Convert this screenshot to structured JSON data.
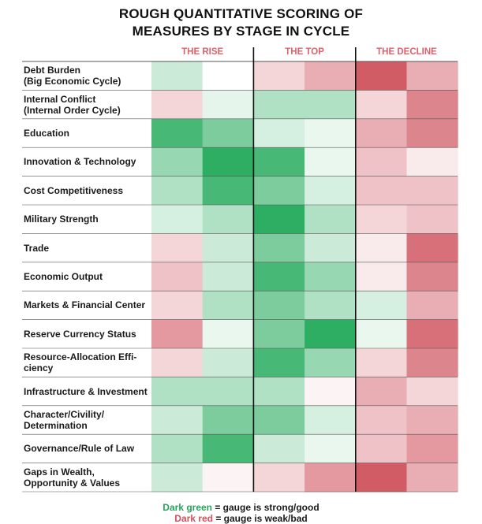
{
  "title_line1": "ROUGH QUANTITATIVE SCORING OF",
  "title_line2": "MEASURES BY STAGE IN CYCLE",
  "chart_data": {
    "type": "heatmap",
    "stages": [
      "THE RISE",
      "THE TOP",
      "THE DECLINE"
    ],
    "rows": [
      {
        "label": [
          "Debt Burden",
          "(Big Economic Cycle)"
        ],
        "values": [
          1,
          0,
          -1,
          -2,
          -4,
          -2
        ]
      },
      {
        "label": [
          "Internal Conflict",
          "(Internal Order Cycle)"
        ],
        "values": [
          -1,
          0.5,
          1.5,
          1.5,
          -1,
          -3
        ]
      },
      {
        "label": [
          "Education"
        ],
        "values": [
          3.5,
          2.5,
          0.8,
          0.4,
          -2,
          -3
        ]
      },
      {
        "label": [
          "Innovation & Technology"
        ],
        "values": [
          2,
          4,
          3.5,
          0.4,
          -1.5,
          -0.5
        ]
      },
      {
        "label": [
          "Cost Competitiveness"
        ],
        "values": [
          1.5,
          3.5,
          2.5,
          0.8,
          -1.5,
          -1.5
        ]
      },
      {
        "label": [
          "Military Strength"
        ],
        "values": [
          0.8,
          1.5,
          4,
          1.5,
          -1,
          -1.5
        ]
      },
      {
        "label": [
          "Trade"
        ],
        "values": [
          -1,
          1,
          2.5,
          1,
          -0.5,
          -3.5
        ]
      },
      {
        "label": [
          "Economic Output"
        ],
        "values": [
          -1.5,
          1,
          3.5,
          2,
          -0.5,
          -3
        ]
      },
      {
        "label": [
          "Markets & Financial Center"
        ],
        "values": [
          -1,
          1.5,
          2.5,
          1.5,
          0.8,
          -2
        ]
      },
      {
        "label": [
          "Reserve Currency Status"
        ],
        "values": [
          -2.5,
          0.4,
          2.5,
          4,
          0.4,
          -3.5
        ]
      },
      {
        "label": [
          "Resource-Allocation Effi-",
          "ciency"
        ],
        "values": [
          -1,
          1,
          3.5,
          2,
          -1,
          -3
        ]
      },
      {
        "label": [
          "Infrastructure & Investment"
        ],
        "values": [
          1.5,
          1.5,
          1.5,
          -0.3,
          -2,
          -1
        ]
      },
      {
        "label": [
          "Character/Civility/",
          "Determination"
        ],
        "values": [
          1,
          2.5,
          2.5,
          0.8,
          -1.5,
          -2
        ]
      },
      {
        "label": [
          "Governance/Rule of Law"
        ],
        "values": [
          1.5,
          3.5,
          1,
          0.4,
          -1.5,
          -2.5
        ]
      },
      {
        "label": [
          "Gaps in Wealth,",
          "Opportunity & Values"
        ],
        "values": [
          1,
          -0.3,
          -1,
          -2.5,
          -4,
          -2
        ]
      }
    ],
    "color_scale": {
      "strong": "#2eae62",
      "weak": "#d25c66",
      "neutral": "#ffffff"
    }
  },
  "legend": {
    "green_term": "Dark green",
    "green_rest": " = gauge is strong/good",
    "red_term": "Dark red",
    "red_rest": " = gauge is weak/bad"
  }
}
